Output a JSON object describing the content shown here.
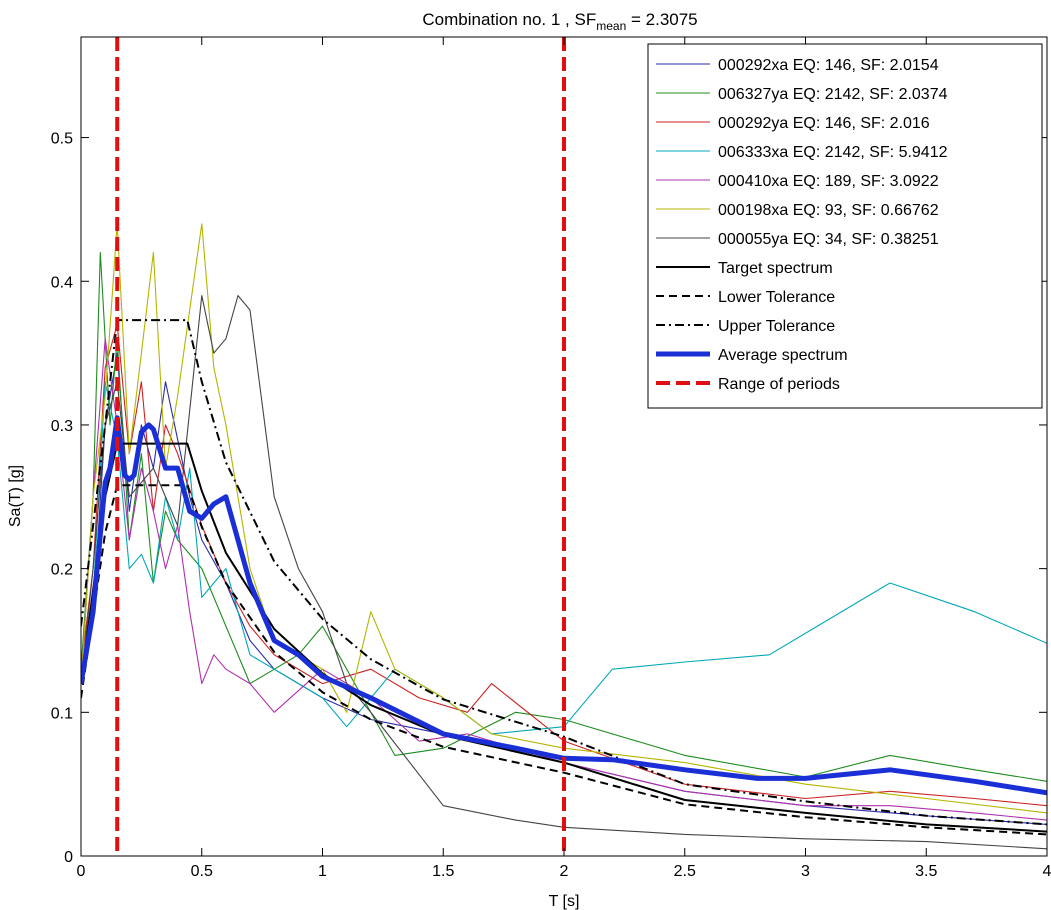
{
  "chart_data": {
    "type": "line",
    "title": {
      "prefix": "Combination no. 1 , SF",
      "subscript": "mean",
      "suffix": " = 2.3075"
    },
    "xlabel": "T [s]",
    "ylabel": "Sa(T) [g]",
    "xlim": [
      0,
      4
    ],
    "ylim": [
      0,
      0.57
    ],
    "xticks": [
      0,
      0.5,
      1,
      1.5,
      2,
      2.5,
      3,
      3.5,
      4
    ],
    "xtick_labels": [
      "0",
      "0.5",
      "1",
      "1.5",
      "2",
      "2.5",
      "3",
      "3.5",
      "4"
    ],
    "yticks": [
      0,
      0.1,
      0.2,
      0.3,
      0.4,
      0.5
    ],
    "ytick_labels": [
      "0",
      "0.1",
      "0.2",
      "0.3",
      "0.4",
      "0.5"
    ],
    "grid": false,
    "legend_position": "top-right",
    "series": [
      {
        "name": "000292xa EQ: 146, SF: 2.0154",
        "color": "#2a2aa8",
        "style": "thin",
        "x": [
          0,
          0.05,
          0.1,
          0.15,
          0.2,
          0.25,
          0.3,
          0.35,
          0.4,
          0.45,
          0.5,
          0.6,
          0.7,
          0.8,
          1.0,
          1.2,
          1.5,
          2.0,
          2.5,
          3.0,
          3.5,
          4.0
        ],
        "y": [
          0.12,
          0.17,
          0.3,
          0.35,
          0.24,
          0.3,
          0.27,
          0.33,
          0.29,
          0.25,
          0.22,
          0.19,
          0.15,
          0.13,
          0.11,
          0.095,
          0.085,
          0.065,
          0.045,
          0.035,
          0.028,
          0.022
        ]
      },
      {
        "name": "006327ya EQ: 2142, SF: 2.0374",
        "color": "#1e8c1e",
        "style": "thin",
        "x": [
          0,
          0.05,
          0.08,
          0.12,
          0.15,
          0.2,
          0.25,
          0.3,
          0.35,
          0.4,
          0.5,
          0.6,
          0.7,
          0.9,
          1.0,
          1.1,
          1.3,
          1.5,
          1.8,
          2.0,
          2.5,
          3.0,
          3.35,
          3.7,
          4.0
        ],
        "y": [
          0.13,
          0.25,
          0.42,
          0.3,
          0.36,
          0.22,
          0.28,
          0.19,
          0.24,
          0.22,
          0.2,
          0.16,
          0.12,
          0.14,
          0.16,
          0.13,
          0.07,
          0.075,
          0.1,
          0.095,
          0.07,
          0.055,
          0.07,
          0.06,
          0.052
        ]
      },
      {
        "name": "000292ya EQ: 146, SF: 2.016",
        "color": "#cc2222",
        "style": "thin",
        "x": [
          0,
          0.05,
          0.1,
          0.15,
          0.2,
          0.25,
          0.3,
          0.35,
          0.4,
          0.5,
          0.6,
          0.7,
          0.8,
          1.0,
          1.2,
          1.4,
          1.6,
          1.7,
          2.0,
          2.5,
          3.0,
          3.35,
          3.7,
          4.0
        ],
        "y": [
          0.13,
          0.2,
          0.34,
          0.37,
          0.28,
          0.33,
          0.24,
          0.3,
          0.28,
          0.23,
          0.19,
          0.16,
          0.14,
          0.12,
          0.13,
          0.11,
          0.1,
          0.12,
          0.08,
          0.05,
          0.04,
          0.045,
          0.04,
          0.035
        ]
      },
      {
        "name": "006333xa EQ: 2142, SF: 5.9412",
        "color": "#00a8b8",
        "style": "thin",
        "x": [
          0,
          0.05,
          0.1,
          0.15,
          0.2,
          0.25,
          0.3,
          0.35,
          0.4,
          0.45,
          0.5,
          0.6,
          0.7,
          0.8,
          1.0,
          1.1,
          1.3,
          1.5,
          1.7,
          2.0,
          2.2,
          2.5,
          2.85,
          3.1,
          3.35,
          3.7,
          4.0
        ],
        "y": [
          0.12,
          0.18,
          0.33,
          0.29,
          0.2,
          0.21,
          0.19,
          0.25,
          0.22,
          0.27,
          0.18,
          0.2,
          0.14,
          0.13,
          0.11,
          0.09,
          0.13,
          0.11,
          0.085,
          0.09,
          0.13,
          0.135,
          0.14,
          0.165,
          0.19,
          0.17,
          0.148
        ]
      },
      {
        "name": "000410xa EQ: 189, SF: 3.0922",
        "color": "#b030b0",
        "style": "thin",
        "x": [
          0,
          0.05,
          0.1,
          0.15,
          0.2,
          0.25,
          0.3,
          0.35,
          0.4,
          0.45,
          0.5,
          0.55,
          0.6,
          0.7,
          0.8,
          1.0,
          1.2,
          1.4,
          1.6,
          1.8,
          2.0,
          2.5,
          3.0,
          3.35,
          3.7,
          4.0
        ],
        "y": [
          0.12,
          0.25,
          0.36,
          0.3,
          0.22,
          0.27,
          0.24,
          0.2,
          0.23,
          0.17,
          0.12,
          0.14,
          0.13,
          0.12,
          0.1,
          0.13,
          0.11,
          0.08,
          0.085,
          0.075,
          0.065,
          0.045,
          0.035,
          0.035,
          0.03,
          0.025
        ]
      },
      {
        "name": "000198xa EQ: 93, SF: 0.66762",
        "color": "#b5b500",
        "style": "thin",
        "x": [
          0,
          0.05,
          0.1,
          0.15,
          0.2,
          0.25,
          0.3,
          0.35,
          0.4,
          0.45,
          0.5,
          0.55,
          0.6,
          0.7,
          0.8,
          1.0,
          1.1,
          1.2,
          1.3,
          1.5,
          1.7,
          2.0,
          2.5,
          3.0,
          3.5,
          4.0
        ],
        "y": [
          0.12,
          0.25,
          0.32,
          0.44,
          0.28,
          0.35,
          0.42,
          0.27,
          0.32,
          0.38,
          0.44,
          0.34,
          0.3,
          0.2,
          0.15,
          0.13,
          0.1,
          0.17,
          0.13,
          0.11,
          0.085,
          0.075,
          0.065,
          0.05,
          0.04,
          0.03
        ]
      },
      {
        "name": "000055ya EQ: 34, SF: 0.38251",
        "color": "#444444",
        "style": "thin",
        "x": [
          0,
          0.05,
          0.1,
          0.15,
          0.2,
          0.3,
          0.4,
          0.5,
          0.55,
          0.6,
          0.65,
          0.7,
          0.8,
          0.9,
          1.0,
          1.1,
          1.2,
          1.5,
          1.8,
          2.0,
          2.5,
          3.0,
          3.5,
          4.0
        ],
        "y": [
          0.12,
          0.2,
          0.3,
          0.33,
          0.25,
          0.27,
          0.23,
          0.39,
          0.35,
          0.36,
          0.39,
          0.38,
          0.25,
          0.2,
          0.17,
          0.12,
          0.1,
          0.035,
          0.025,
          0.02,
          0.015,
          0.012,
          0.01,
          0.005
        ]
      },
      {
        "name": "Target spectrum",
        "color": "#000000",
        "style": "solid",
        "x": [
          0,
          0.1,
          0.15,
          0.2,
          0.3,
          0.44,
          0.5,
          0.6,
          0.8,
          1.0,
          1.2,
          1.5,
          2.0,
          2.5,
          3.0,
          3.5,
          4.0
        ],
        "y": [
          0.12,
          0.25,
          0.287,
          0.287,
          0.287,
          0.287,
          0.254,
          0.211,
          0.158,
          0.127,
          0.105,
          0.084,
          0.065,
          0.039,
          0.03,
          0.022,
          0.017
        ]
      },
      {
        "name": "Lower Tolerance",
        "color": "#000000",
        "style": "dashed",
        "x": [
          0,
          0.1,
          0.15,
          0.2,
          0.3,
          0.44,
          0.5,
          0.6,
          0.8,
          1.0,
          1.2,
          1.5,
          2.0,
          2.5,
          3.0,
          3.5,
          4.0
        ],
        "y": [
          0.11,
          0.225,
          0.258,
          0.258,
          0.258,
          0.258,
          0.229,
          0.19,
          0.142,
          0.114,
          0.095,
          0.076,
          0.058,
          0.036,
          0.027,
          0.02,
          0.015
        ]
      },
      {
        "name": "Upper Tolerance",
        "color": "#000000",
        "style": "dashdot",
        "x": [
          0,
          0.1,
          0.15,
          0.2,
          0.3,
          0.44,
          0.5,
          0.6,
          0.8,
          1.0,
          1.2,
          1.5,
          2.0,
          2.5,
          3.0,
          3.5,
          4.0
        ],
        "y": [
          0.16,
          0.3,
          0.373,
          0.373,
          0.373,
          0.373,
          0.33,
          0.274,
          0.205,
          0.165,
          0.137,
          0.109,
          0.083,
          0.05,
          0.038,
          0.028,
          0.022
        ]
      },
      {
        "name": "Average spectrum",
        "color": "#1a2fd6",
        "style": "thick",
        "x": [
          0,
          0.05,
          0.1,
          0.12,
          0.15,
          0.18,
          0.2,
          0.22,
          0.25,
          0.28,
          0.3,
          0.35,
          0.4,
          0.45,
          0.5,
          0.55,
          0.6,
          0.7,
          0.8,
          0.9,
          1.0,
          1.2,
          1.5,
          1.8,
          2.0,
          2.2,
          2.5,
          2.8,
          3.0,
          3.35,
          3.7,
          4.0
        ],
        "y": [
          0.12,
          0.17,
          0.26,
          0.27,
          0.305,
          0.265,
          0.262,
          0.265,
          0.295,
          0.3,
          0.297,
          0.27,
          0.27,
          0.24,
          0.235,
          0.245,
          0.25,
          0.19,
          0.15,
          0.14,
          0.125,
          0.11,
          0.085,
          0.075,
          0.068,
          0.067,
          0.06,
          0.054,
          0.054,
          0.06,
          0.052,
          0.044
        ]
      },
      {
        "name": "Range of periods",
        "color": "#e01010",
        "style": "reddashed",
        "vlines": [
          0.15,
          2.0
        ]
      }
    ]
  }
}
